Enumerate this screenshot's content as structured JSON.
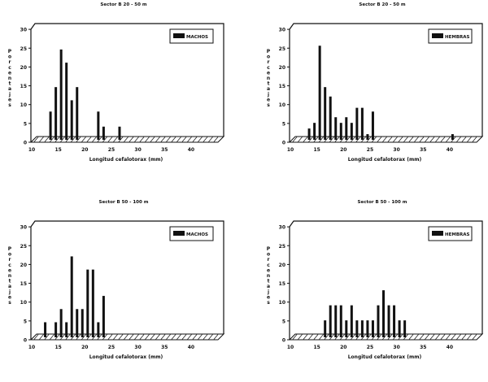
{
  "chart_data": [
    {
      "type": "bar",
      "title": "Sector B 20 - 50 m",
      "xlabel": "Longitud cefalotorax (mm)",
      "ylabel": "Porcentajes",
      "legend": "MACHOS",
      "legend_position": "top-right",
      "xlim": [
        10,
        45
      ],
      "ylim": [
        0,
        30
      ],
      "xticks": [
        10,
        15,
        20,
        25,
        30,
        35,
        40
      ],
      "yticks": [
        0,
        5,
        10,
        15,
        20,
        25,
        30
      ],
      "x": [
        13,
        14,
        15,
        16,
        17,
        18,
        22,
        23,
        26
      ],
      "values": [
        7.5,
        14,
        24,
        20.5,
        10.5,
        14,
        7.5,
        3.5,
        3.5
      ],
      "color": "#111111"
    },
    {
      "type": "bar",
      "title": "Sector B 20 - 50 m",
      "xlabel": "Longitud cefalotorax (mm)",
      "ylabel": "Porcentajes",
      "legend": "HEMBRAS",
      "legend_position": "top-right",
      "xlim": [
        10,
        45
      ],
      "ylim": [
        0,
        30
      ],
      "xticks": [
        10,
        15,
        20,
        25,
        30,
        35,
        40
      ],
      "yticks": [
        0,
        5,
        10,
        15,
        20,
        25,
        30
      ],
      "x": [
        13,
        14,
        15,
        16,
        17,
        18,
        19,
        20,
        21,
        22,
        23,
        24,
        25,
        40
      ],
      "values": [
        3,
        4.5,
        25,
        14,
        11.5,
        6,
        4.5,
        6,
        4.5,
        8.5,
        8.5,
        1.5,
        7.5,
        1.5
      ],
      "color": "#111111"
    },
    {
      "type": "bar",
      "title": "Sector B 50 - 100 m",
      "xlabel": "Longitud cefalotorax (mm)",
      "ylabel": "Porcentajes",
      "legend": "MACHOS",
      "legend_position": "top-right",
      "xlim": [
        10,
        45
      ],
      "ylim": [
        0,
        30
      ],
      "xticks": [
        10,
        15,
        20,
        25,
        30,
        35,
        40
      ],
      "yticks": [
        0,
        5,
        10,
        15,
        20,
        25,
        30
      ],
      "x": [
        12,
        14,
        15,
        16,
        17,
        18,
        19,
        20,
        21,
        22,
        23
      ],
      "values": [
        4,
        4,
        7.5,
        4,
        21.5,
        7.5,
        7.5,
        18,
        18,
        4,
        11
      ],
      "color": "#111111"
    },
    {
      "type": "bar",
      "title": "Sector B 50 - 100 m",
      "xlabel": "Longitud cefalotorax (mm)",
      "ylabel": "Porcentajes",
      "legend": "HEMBRAS",
      "legend_position": "top-right",
      "xlim": [
        10,
        45
      ],
      "ylim": [
        0,
        30
      ],
      "xticks": [
        10,
        15,
        20,
        25,
        30,
        35,
        40
      ],
      "yticks": [
        0,
        5,
        10,
        15,
        20,
        25,
        30
      ],
      "x": [
        16,
        17,
        18,
        19,
        20,
        21,
        22,
        23,
        24,
        25,
        26,
        27,
        28,
        29,
        30,
        31
      ],
      "values": [
        4.5,
        8.5,
        8.5,
        8.5,
        4.5,
        8.5,
        4.5,
        4.5,
        4.5,
        4.5,
        8.5,
        12.5,
        8.5,
        8.5,
        4.5,
        4.5
      ],
      "color": "#111111"
    }
  ]
}
